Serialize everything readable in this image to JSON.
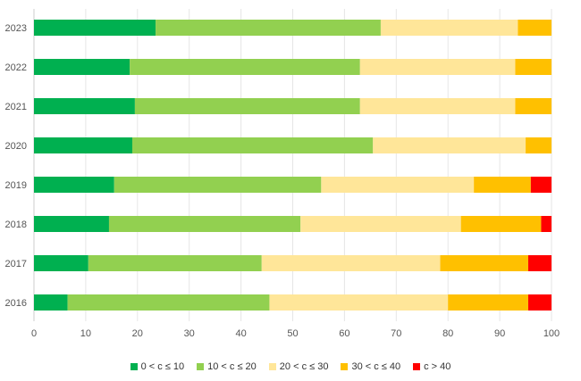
{
  "chart_data": {
    "type": "bar",
    "orientation": "horizontal",
    "stacked": true,
    "categories": [
      "2023",
      "2022",
      "2021",
      "2020",
      "2019",
      "2018",
      "2017",
      "2016"
    ],
    "series": [
      {
        "name": "0 < c ≤ 10",
        "color": "#00b050",
        "values": [
          23.5,
          18.5,
          19.5,
          19.0,
          15.5,
          14.5,
          10.5,
          6.5
        ]
      },
      {
        "name": "10 < c ≤ 20",
        "color": "#92d050",
        "values": [
          43.5,
          44.5,
          43.5,
          46.5,
          40.0,
          37.0,
          33.5,
          39.0
        ]
      },
      {
        "name": "20 < c ≤ 30",
        "color": "#ffe699",
        "values": [
          26.5,
          30.0,
          30.0,
          29.5,
          29.5,
          31.0,
          34.5,
          34.5
        ]
      },
      {
        "name": "30 < c ≤ 40",
        "color": "#ffc000",
        "values": [
          6.5,
          7.0,
          7.0,
          5.0,
          11.0,
          15.5,
          17.0,
          15.5
        ]
      },
      {
        "name": "c > 40",
        "color": "#ff0000",
        "values": [
          0,
          0,
          0,
          0,
          4.0,
          2.0,
          4.5,
          4.5
        ]
      }
    ],
    "xlim": [
      0,
      100
    ],
    "xticks": [
      "0",
      "10",
      "20",
      "30",
      "40",
      "50",
      "60",
      "70",
      "80",
      "90",
      "100"
    ],
    "grid": true,
    "legend_position": "bottom"
  }
}
